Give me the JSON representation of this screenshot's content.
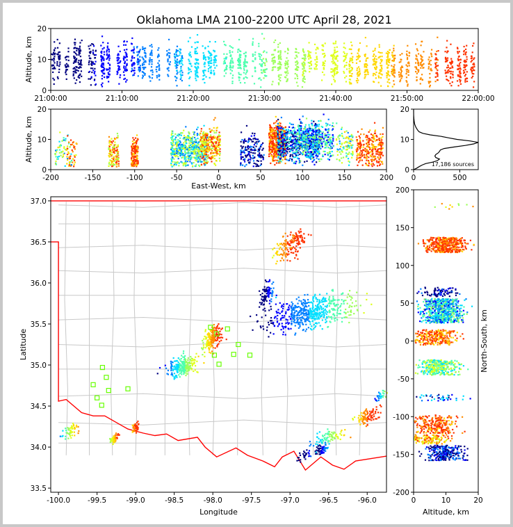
{
  "chart_data": {
    "type": "scatter",
    "title": "Oklahoma LMA 2100-2200 UTC April 28, 2021",
    "colormap": [
      "#00007f",
      "#0000ff",
      "#007fff",
      "#00dfff",
      "#4dffaf",
      "#9dff5a",
      "#dfff1a",
      "#ffd700",
      "#ff8c00",
      "#ff3300",
      "#b30000"
    ],
    "panels": {
      "time_altitude": {
        "ylabel": "Altitude, km",
        "ylim": [
          0,
          20
        ],
        "yticks": [
          "0",
          "10",
          "20"
        ],
        "xticks": [
          "21:00:00",
          "21:10:00",
          "21:20:00",
          "21:30:00",
          "21:40:00",
          "21:50:00",
          "22:00:00"
        ],
        "x_minutes_range": [
          0,
          60
        ]
      },
      "east_west": {
        "xlabel": "East-West, km",
        "ylabel": "Altitude, km",
        "xlim": [
          -200,
          200
        ],
        "ylim": [
          0,
          20
        ],
        "xticks": [
          "-200",
          "-150",
          "-100",
          "-50",
          "0",
          "50",
          "100",
          "150",
          "200"
        ],
        "yticks": [
          "0",
          "10",
          "20"
        ],
        "clusters": [
          {
            "x": -185,
            "w": 10,
            "alt": 6,
            "c": 0.5,
            "n": 60
          },
          {
            "x": -175,
            "w": 6,
            "alt": 5,
            "c": 0.9,
            "n": 40
          },
          {
            "x": -125,
            "w": 6,
            "alt": 5,
            "c": 0.8,
            "n": 120
          },
          {
            "x": -100,
            "w": 4,
            "alt": 5,
            "c": 0.95,
            "n": 140
          },
          {
            "x": -35,
            "w": 22,
            "alt": 7,
            "c": 0.45,
            "n": 520
          },
          {
            "x": -10,
            "w": 12,
            "alt": 8,
            "c": 0.8,
            "n": 260
          },
          {
            "x": 40,
            "w": 14,
            "alt": 6,
            "c": 0.05,
            "n": 160
          },
          {
            "x": 70,
            "w": 10,
            "alt": 9,
            "c": 0.95,
            "n": 450
          },
          {
            "x": 95,
            "w": 25,
            "alt": 9,
            "c": 0.2,
            "n": 600
          },
          {
            "x": 115,
            "w": 22,
            "alt": 10,
            "c": 0.35,
            "n": 380
          },
          {
            "x": 150,
            "w": 10,
            "alt": 8,
            "c": 0.5,
            "n": 100
          },
          {
            "x": 180,
            "w": 16,
            "alt": 7,
            "c": 0.95,
            "n": 260
          }
        ]
      },
      "histogram": {
        "xlim": [
          0,
          700
        ],
        "xticks": [
          "0",
          "500"
        ],
        "ylim": [
          0,
          20
        ],
        "yticks": [
          "0",
          "10",
          "20"
        ],
        "source_count_label": "17,186 sources",
        "profile": [
          [
            0,
            0
          ],
          [
            0.5,
            35
          ],
          [
            1,
            60
          ],
          [
            1.5,
            90
          ],
          [
            2,
            130
          ],
          [
            2.5,
            210
          ],
          [
            3,
            260
          ],
          [
            3.5,
            280
          ],
          [
            4,
            240
          ],
          [
            4.5,
            230
          ],
          [
            5,
            240
          ],
          [
            5.5,
            265
          ],
          [
            6,
            280
          ],
          [
            6.5,
            290
          ],
          [
            7,
            330
          ],
          [
            7.5,
            440
          ],
          [
            8,
            560
          ],
          [
            8.5,
            650
          ],
          [
            9,
            700
          ],
          [
            9.5,
            610
          ],
          [
            10,
            470
          ],
          [
            10.5,
            380
          ],
          [
            11,
            300
          ],
          [
            11.5,
            180
          ],
          [
            12,
            100
          ],
          [
            12.5,
            60
          ],
          [
            13,
            45
          ],
          [
            14,
            25
          ],
          [
            15,
            12
          ],
          [
            16,
            6
          ],
          [
            17,
            3
          ],
          [
            18,
            1
          ],
          [
            20,
            0
          ]
        ]
      },
      "plan": {
        "xlabel": "Longitude",
        "ylabel": "Latitude",
        "xlim": [
          -100.1,
          -95.75
        ],
        "ylim": [
          33.45,
          37.05
        ],
        "xticks": [
          "-100.0",
          "-99.5",
          "-99.0",
          "-98.5",
          "-98.0",
          "-97.5",
          "-97.0",
          "-96.5",
          "-96.0"
        ],
        "yticks": [
          "33.5",
          "34.0",
          "34.5",
          "35.0",
          "35.5",
          "36.0",
          "36.5",
          "37.0"
        ],
        "station_markers": [
          [
            -99.43,
            34.97
          ],
          [
            -99.38,
            34.85
          ],
          [
            -99.55,
            34.76
          ],
          [
            -99.35,
            34.69
          ],
          [
            -99.5,
            34.6
          ],
          [
            -99.44,
            34.51
          ],
          [
            -99.1,
            34.71
          ],
          [
            -98.03,
            35.46
          ],
          [
            -97.81,
            35.44
          ],
          [
            -97.95,
            35.38
          ],
          [
            -97.67,
            35.25
          ],
          [
            -97.98,
            35.12
          ],
          [
            -97.73,
            35.13
          ],
          [
            -97.92,
            35.01
          ],
          [
            -97.52,
            35.12
          ]
        ],
        "storms": [
          {
            "lon": -97.0,
            "lat": 36.45,
            "dx": 0.1,
            "dy": 0.08,
            "c": 0.95,
            "n": 140
          },
          {
            "lon": -96.9,
            "lat": 36.55,
            "dx": 0.06,
            "dy": 0.05,
            "c": 0.97,
            "n": 30
          },
          {
            "lon": -97.3,
            "lat": 35.87,
            "dx": 0.05,
            "dy": 0.07,
            "c": 0.08,
            "n": 90
          },
          {
            "lon": -96.75,
            "lat": 35.65,
            "dx": 0.28,
            "dy": 0.1,
            "c": 0.3,
            "n": 560
          },
          {
            "lon": -98.0,
            "lat": 35.33,
            "dx": 0.06,
            "dy": 0.07,
            "c": 0.85,
            "n": 180
          },
          {
            "lon": -98.4,
            "lat": 34.98,
            "dx": 0.1,
            "dy": 0.06,
            "c": 0.45,
            "n": 240
          },
          {
            "lon": -99.85,
            "lat": 34.2,
            "dx": 0.05,
            "dy": 0.04,
            "c": 0.6,
            "n": 50
          },
          {
            "lon": -99.28,
            "lat": 34.1,
            "dx": 0.03,
            "dy": 0.03,
            "c": 0.75,
            "n": 50
          },
          {
            "lon": -99.0,
            "lat": 34.25,
            "dx": 0.03,
            "dy": 0.03,
            "c": 0.95,
            "n": 40
          },
          {
            "lon": -96.5,
            "lat": 34.12,
            "dx": 0.1,
            "dy": 0.04,
            "c": 0.5,
            "n": 80
          },
          {
            "lon": -96.58,
            "lat": 33.97,
            "dx": 0.05,
            "dy": 0.03,
            "c": 0.15,
            "n": 60
          },
          {
            "lon": -96.0,
            "lat": 34.38,
            "dx": 0.08,
            "dy": 0.05,
            "c": 0.9,
            "n": 90
          },
          {
            "lon": -95.83,
            "lat": 34.63,
            "dx": 0.04,
            "dy": 0.03,
            "c": 0.35,
            "n": 30
          },
          {
            "lon": -96.8,
            "lat": 33.9,
            "dx": 0.05,
            "dy": 0.03,
            "c": 0.05,
            "n": 30
          }
        ]
      },
      "north_south": {
        "xlabel": "Altitude, km",
        "ylabel": "North-South, km",
        "xlim": [
          0,
          20
        ],
        "ylim": [
          -200,
          200
        ],
        "xticks": [
          "0",
          "10",
          "20"
        ],
        "yticks": [
          "-200",
          "-150",
          "-100",
          "-50",
          "0",
          "50",
          "100",
          "150",
          "200"
        ],
        "clusters": [
          {
            "ns": 178,
            "w": 4,
            "alt": 11,
            "c": 0.7,
            "n": 10
          },
          {
            "ns": 127,
            "w": 10,
            "alt": 10,
            "c": 0.95,
            "n": 420
          },
          {
            "ns": 65,
            "w": 6,
            "alt": 8,
            "c": 0.05,
            "n": 80
          },
          {
            "ns": 40,
            "w": 16,
            "alt": 9,
            "c": 0.35,
            "n": 700
          },
          {
            "ns": 5,
            "w": 10,
            "alt": 7,
            "c": 0.9,
            "n": 260
          },
          {
            "ns": -35,
            "w": 10,
            "alt": 8,
            "c": 0.5,
            "n": 340
          },
          {
            "ns": -75,
            "w": 4,
            "alt": 8,
            "c": 0.2,
            "n": 40
          },
          {
            "ns": -110,
            "w": 12,
            "alt": 7,
            "c": 0.95,
            "n": 240
          },
          {
            "ns": -130,
            "w": 6,
            "alt": 5,
            "c": 0.8,
            "n": 120
          },
          {
            "ns": -148,
            "w": 10,
            "alt": 10,
            "c": 0.1,
            "n": 260
          }
        ]
      }
    }
  }
}
